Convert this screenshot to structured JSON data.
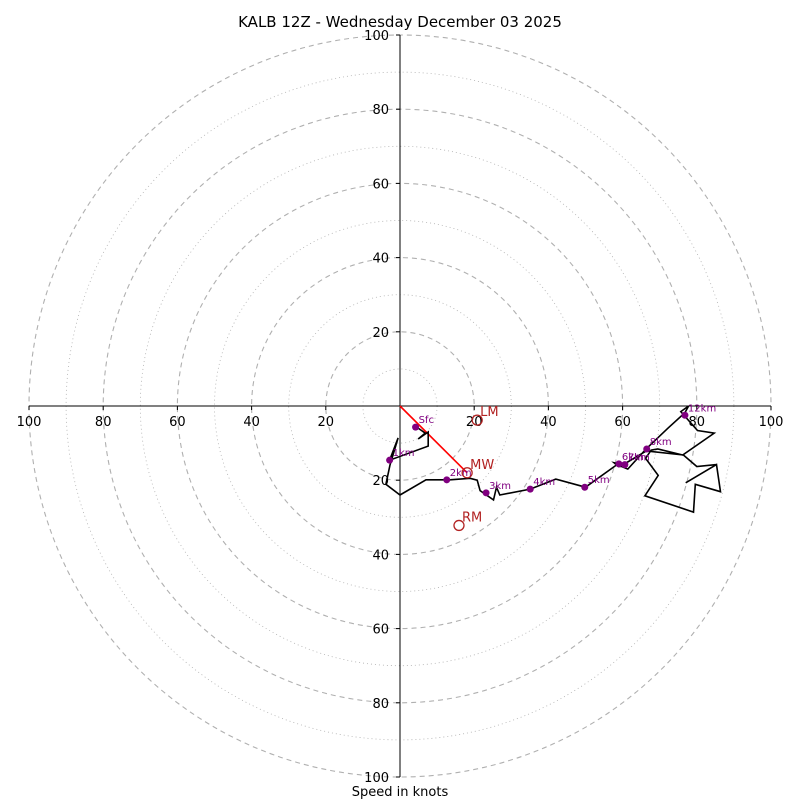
{
  "chart_data": {
    "type": "hodograph",
    "title": "KALB 12Z - Wednesday December 03 2025",
    "xlabel": "Speed in knots",
    "units": "knots",
    "range": [
      -100,
      100
    ],
    "ring_values": [
      10,
      20,
      30,
      40,
      50,
      60,
      70,
      80,
      90,
      100
    ],
    "dashed_ring_step": 20,
    "tick_values": [
      20,
      40,
      60,
      80,
      100
    ],
    "tick_labels": {
      "x_negative": [
        "20",
        "40",
        "60",
        "80",
        "100"
      ],
      "x_positive": [
        "20",
        "40",
        "60",
        "80",
        "100"
      ],
      "y_positive": [
        "20",
        "40",
        "60",
        "80",
        "100"
      ],
      "y_negative": [
        "20",
        "40",
        "60",
        "80",
        "100"
      ]
    },
    "hodograph_trace": [
      [
        4.5,
        -5.7
      ],
      [
        6.8,
        -7.3
      ],
      [
        4.9,
        -8.9
      ],
      [
        7.6,
        -7.0
      ],
      [
        7.6,
        -10.8
      ],
      [
        -2.8,
        -14.6
      ],
      [
        -0.5,
        -8.6
      ],
      [
        -2.7,
        -15.9
      ],
      [
        -3.8,
        -21.1
      ],
      [
        0,
        -24.0
      ],
      [
        7.0,
        -19.9
      ],
      [
        13.5,
        -19.9
      ],
      [
        18.9,
        -19.5
      ],
      [
        20.8,
        -20.0
      ],
      [
        21.6,
        -22.8
      ],
      [
        25.2,
        -25.3
      ],
      [
        26.0,
        -21.9
      ],
      [
        26.9,
        -24.0
      ],
      [
        35.1,
        -22.4
      ],
      [
        42.0,
        -19.7
      ],
      [
        50.0,
        -21.9
      ],
      [
        58.5,
        -15.8
      ],
      [
        61.4,
        -17.0
      ],
      [
        66.3,
        -11.6
      ],
      [
        72.3,
        -5.9
      ],
      [
        76.8,
        -1.8
      ],
      [
        77.8,
        0
      ],
      [
        75.7,
        -1.5
      ],
      [
        80.2,
        -6.6
      ],
      [
        84.7,
        -7.3
      ],
      [
        76.2,
        -13.2
      ],
      [
        69.5,
        -11.6
      ],
      [
        67.7,
        -11.9
      ],
      [
        66.2,
        -14.1
      ],
      [
        69.6,
        -18.7
      ],
      [
        66.0,
        -24.2
      ],
      [
        79.1,
        -28.6
      ],
      [
        79.6,
        -21.1
      ],
      [
        86.4,
        -23.1
      ],
      [
        85.3,
        -15.8
      ],
      [
        77.0,
        -20.7
      ],
      [
        85.3,
        -15.8
      ],
      [
        80.0,
        -16.3
      ],
      [
        76.4,
        -13.2
      ],
      [
        66.4,
        -12.1
      ],
      [
        60.2,
        -15.8
      ],
      [
        57.7,
        -15.3
      ],
      [
        58.9,
        -16.3
      ],
      [
        61.4,
        -16.1
      ],
      [
        60.4,
        -16.4
      ],
      [
        58.5,
        -15.8
      ]
    ],
    "height_markers": [
      {
        "label": "Sfc",
        "u": 4.2,
        "v": -5.7
      },
      {
        "label": "1km",
        "u": -2.8,
        "v": -14.6
      },
      {
        "label": "2km",
        "u": 12.6,
        "v": -19.9
      },
      {
        "label": "3km",
        "u": 23.2,
        "v": -23.4
      },
      {
        "label": "4km",
        "u": 35.1,
        "v": -22.4
      },
      {
        "label": "5km",
        "u": 49.8,
        "v": -21.9
      },
      {
        "label": "6km",
        "u": 59.0,
        "v": -15.6
      },
      {
        "label": "7km",
        "u": 60.6,
        "v": -15.8
      },
      {
        "label": "8km",
        "u": 66.5,
        "v": -11.6
      },
      {
        "label": "12km",
        "u": 76.8,
        "v": -2.5
      }
    ],
    "storm_motion": [
      {
        "label": "LM",
        "u": 20.8,
        "v": -3.8,
        "color": "#b22222"
      },
      {
        "label": "MW",
        "u": 18.1,
        "v": -18.0,
        "color": "#b22222"
      },
      {
        "label": "RM",
        "u": 15.9,
        "v": -32.2,
        "color": "#b22222"
      }
    ],
    "shear_vector": {
      "from": [
        0,
        0
      ],
      "to": [
        18.1,
        -18.0
      ],
      "color": "#ff0000"
    },
    "colors": {
      "grid": "#b0b0b0",
      "trace": "#000000",
      "markers": "#800080",
      "motion": "#b22222",
      "shear": "#ff0000"
    }
  }
}
